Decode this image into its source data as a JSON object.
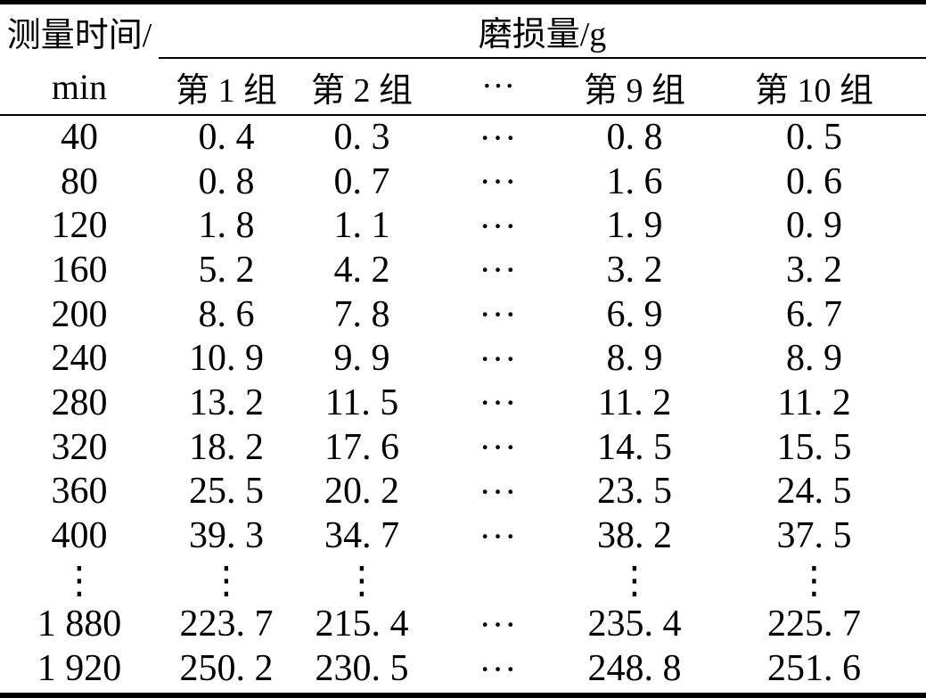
{
  "colors": {
    "background": "#ffffff",
    "text": "#000000",
    "rules": "#000000"
  },
  "table": {
    "corner": {
      "line1": "测量时间/",
      "line2": "min"
    },
    "span_header": "磨损量/g",
    "group_columns": [
      "第 1 组",
      "第 2 组",
      "···",
      "第 9 组",
      "第 10 组"
    ],
    "horizontal_ellipsis": "···",
    "vertical_ellipsis": "⋮",
    "rows": [
      [
        "40",
        "0. 4",
        "0. 3",
        "···",
        "0. 8",
        "0. 5"
      ],
      [
        "80",
        "0. 8",
        "0. 7",
        "···",
        "1. 6",
        "0. 6"
      ],
      [
        "120",
        "1. 8",
        "1. 1",
        "···",
        "1. 9",
        "0. 9"
      ],
      [
        "160",
        "5. 2",
        "4. 2",
        "···",
        "3. 2",
        "3. 2"
      ],
      [
        "200",
        "8. 6",
        "7. 8",
        "···",
        "6. 9",
        "6. 7"
      ],
      [
        "240",
        "10. 9",
        "9. 9",
        "···",
        "8. 9",
        "8. 9"
      ],
      [
        "280",
        "13. 2",
        "11. 5",
        "···",
        "11. 2",
        "11. 2"
      ],
      [
        "320",
        "18. 2",
        "17. 6",
        "···",
        "14. 5",
        "15. 5"
      ],
      [
        "360",
        "25. 5",
        "20. 2",
        "···",
        "23. 5",
        "24. 5"
      ],
      [
        "400",
        "39. 3",
        "34. 7",
        "···",
        "38. 2",
        "37. 5"
      ],
      [
        "⋮",
        "⋮",
        "⋮",
        "",
        "⋮",
        "⋮"
      ],
      [
        "1 880",
        "223. 7",
        "215. 4",
        "···",
        "235. 4",
        "225. 7"
      ],
      [
        "1 920",
        "250. 2",
        "230. 5",
        "···",
        "248. 8",
        "251. 6"
      ]
    ]
  }
}
